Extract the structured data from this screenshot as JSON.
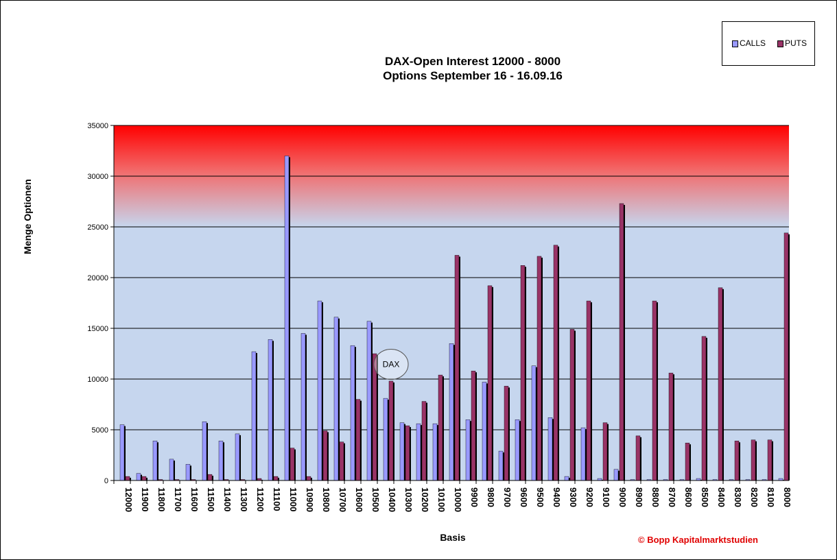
{
  "chart_data": {
    "type": "bar",
    "title": "DAX-Open Interest 12000 - 8000",
    "subtitle": "Options September 16  - 16.09.16",
    "xlabel": "Basis",
    "ylabel": "Menge Optionen",
    "ylim": [
      0,
      35000
    ],
    "yticks": [
      "0",
      "5000",
      "10000",
      "15000",
      "20000",
      "25000",
      "30000",
      "35000"
    ],
    "grid": true,
    "legend_position": "top-right",
    "categories": [
      "12000",
      "11900",
      "11800",
      "11700",
      "11600",
      "11500",
      "11400",
      "11300",
      "11200",
      "11100",
      "11000",
      "10900",
      "10800",
      "10700",
      "10600",
      "10500",
      "10400",
      "10300",
      "10200",
      "10100",
      "10000",
      "9900",
      "9800",
      "9700",
      "9600",
      "9500",
      "9400",
      "9300",
      "9200",
      "9100",
      "9000",
      "8900",
      "8800",
      "8700",
      "8600",
      "8500",
      "8400",
      "8300",
      "8200",
      "8100",
      "8000"
    ],
    "series": [
      {
        "name": "CALLS",
        "color": "#9999ff",
        "values": [
          5500,
          700,
          3900,
          2100,
          1600,
          5800,
          3900,
          4600,
          12700,
          13900,
          32000,
          14500,
          17700,
          16100,
          13300,
          15700,
          8100,
          5700,
          5600,
          5600,
          13500,
          6000,
          9700,
          2900,
          6000,
          11300,
          6200,
          400,
          5200,
          200,
          1100,
          100,
          100,
          100,
          100,
          200,
          100,
          100,
          100,
          100,
          200
        ]
      },
      {
        "name": "PUTS",
        "color": "#993366",
        "values": [
          400,
          400,
          100,
          100,
          100,
          600,
          100,
          100,
          200,
          400,
          3200,
          400,
          4900,
          3800,
          8000,
          12500,
          9800,
          5400,
          7800,
          10400,
          22200,
          10800,
          19200,
          9300,
          21200,
          22100,
          23200,
          14900,
          17700,
          5700,
          27300,
          4400,
          17700,
          10600,
          3700,
          14200,
          19000,
          3900,
          4000,
          4000,
          24400
        ]
      }
    ],
    "annotations": [
      "DAX"
    ]
  },
  "legend": {
    "calls_label": "CALLS",
    "puts_label": "PUTS"
  },
  "copyright": "© Bopp Kapitalmarktstudien",
  "colors": {
    "calls": "#9999ff",
    "puts": "#993366",
    "danger_top": "#ff0000",
    "plot_bg": "#c6d6ee",
    "copyright": "#e00000"
  }
}
